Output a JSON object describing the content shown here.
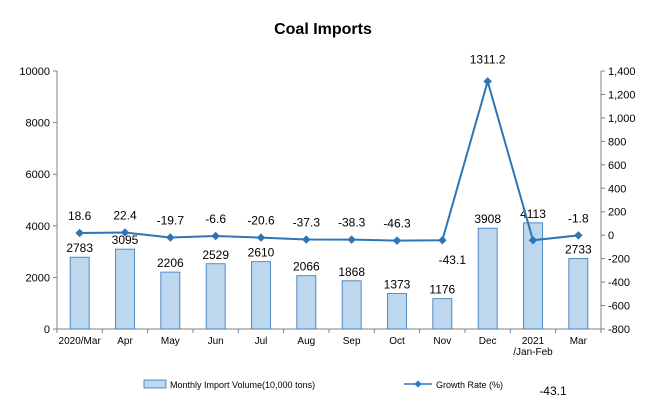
{
  "chart_data": {
    "type": "bar",
    "title": "Coal Imports",
    "categories": [
      "2020/Mar",
      "Apr",
      "May",
      "Jun",
      "Jul",
      "Aug",
      "Sep",
      "Oct",
      "Nov",
      "Dec",
      "2021\n/Jan-Feb",
      "Mar"
    ],
    "series": [
      {
        "name": "Monthly Import Volume(10,000 tons)",
        "type": "bar",
        "axis": "left",
        "color": "#bdd7ee",
        "values": [
          2783,
          3095,
          2206,
          2529,
          2610,
          2066,
          1868,
          1373,
          1176,
          3908,
          4113,
          2733
        ]
      },
      {
        "name": "Growth Rate (%)",
        "type": "line",
        "axis": "right",
        "color": "#2e75b6",
        "values": [
          18.6,
          22.4,
          -19.7,
          -6.6,
          -20.6,
          -37.3,
          -38.3,
          -46.3,
          -43.1,
          1311.2,
          -43.1,
          -1.8
        ],
        "labels": [
          "18.6",
          "22.4",
          "-19.7",
          "-6.6",
          "-20.6",
          "-37.3",
          "-38.3",
          "-46.3",
          "-43.1",
          "1311.2",
          "-43.1",
          "-1.8"
        ]
      }
    ],
    "ylim_left": [
      0,
      10000
    ],
    "yticks_left": [
      "0",
      "2000",
      "4000",
      "6000",
      "8000",
      "10000"
    ],
    "ylim_right": [
      -800,
      1400
    ],
    "yticks_right": [
      "-800",
      "-600",
      "-400",
      "-200",
      "0",
      "200",
      "400",
      "600",
      "800",
      "1,000",
      "1,200",
      "1,400"
    ],
    "grid": false,
    "legend": "bottom"
  }
}
